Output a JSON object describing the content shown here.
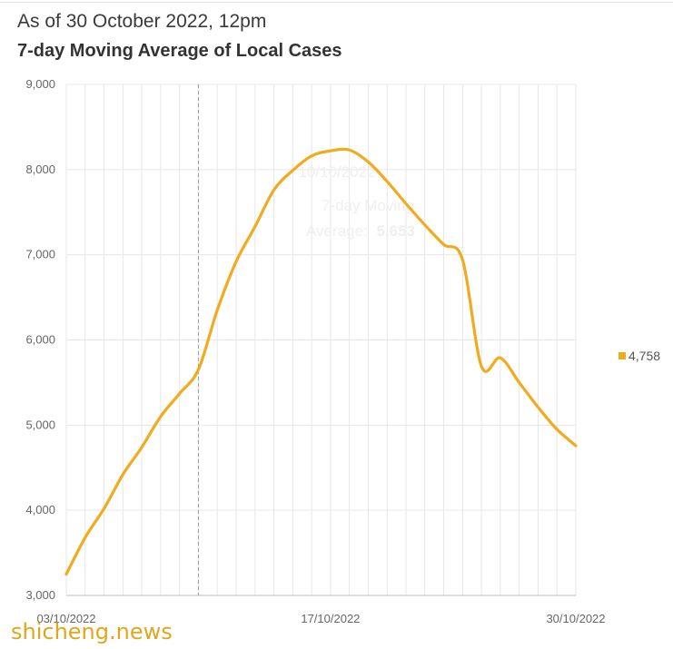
{
  "header": {
    "subtitle": "As of 30 October 2022, 12pm",
    "title": "7-day Moving Average of Local Cases"
  },
  "chart_data": {
    "type": "line",
    "title": "7-day Moving Average of Local Cases",
    "subtitle": "As of 30 October 2022, 12pm",
    "xlabel": "",
    "ylabel": "",
    "ylim": [
      3000,
      9000
    ],
    "yticks": [
      3000,
      4000,
      5000,
      6000,
      7000,
      8000,
      9000
    ],
    "ytick_labels": [
      "3,000",
      "4,000",
      "5,000",
      "6,000",
      "7,000",
      "8,000",
      "9,000"
    ],
    "xticks": [
      "03/10/2022",
      "17/10/2022",
      "30/10/2022"
    ],
    "grid": true,
    "legend_position": "right",
    "series": [
      {
        "name": "",
        "color": "#f0ab1e",
        "x": [
          "03/10/2022",
          "04/10/2022",
          "05/10/2022",
          "06/10/2022",
          "07/10/2022",
          "08/10/2022",
          "09/10/2022",
          "10/10/2022",
          "11/10/2022",
          "12/10/2022",
          "13/10/2022",
          "14/10/2022",
          "15/10/2022",
          "16/10/2022",
          "17/10/2022",
          "18/10/2022",
          "19/10/2022",
          "20/10/2022",
          "21/10/2022",
          "22/10/2022",
          "23/10/2022",
          "24/10/2022",
          "25/10/2022",
          "26/10/2022",
          "27/10/2022",
          "28/10/2022",
          "29/10/2022",
          "30/10/2022"
        ],
        "values": [
          3250,
          3680,
          4020,
          4420,
          4740,
          5100,
          5370,
          5653,
          6350,
          6920,
          7330,
          7760,
          7990,
          8160,
          8220,
          8230,
          8090,
          7860,
          7600,
          7350,
          7120,
          6940,
          5690,
          5790,
          5500,
          5210,
          4950,
          4758
        ]
      }
    ],
    "legend": [
      "4,758"
    ],
    "highlight": {
      "x": "10/10/2022",
      "label": "7-day Moving Average",
      "value": "5,653"
    }
  },
  "tooltip": {
    "date": "10/10/2022",
    "line1": "7-day Moving",
    "line2_prefix": "Average:",
    "value": "5,653"
  },
  "legend": {
    "value_label": "4,758",
    "swatch_color": "#f0ab1e"
  },
  "watermark": {
    "text": "shicheng.news",
    "color": "#e2a51c"
  }
}
